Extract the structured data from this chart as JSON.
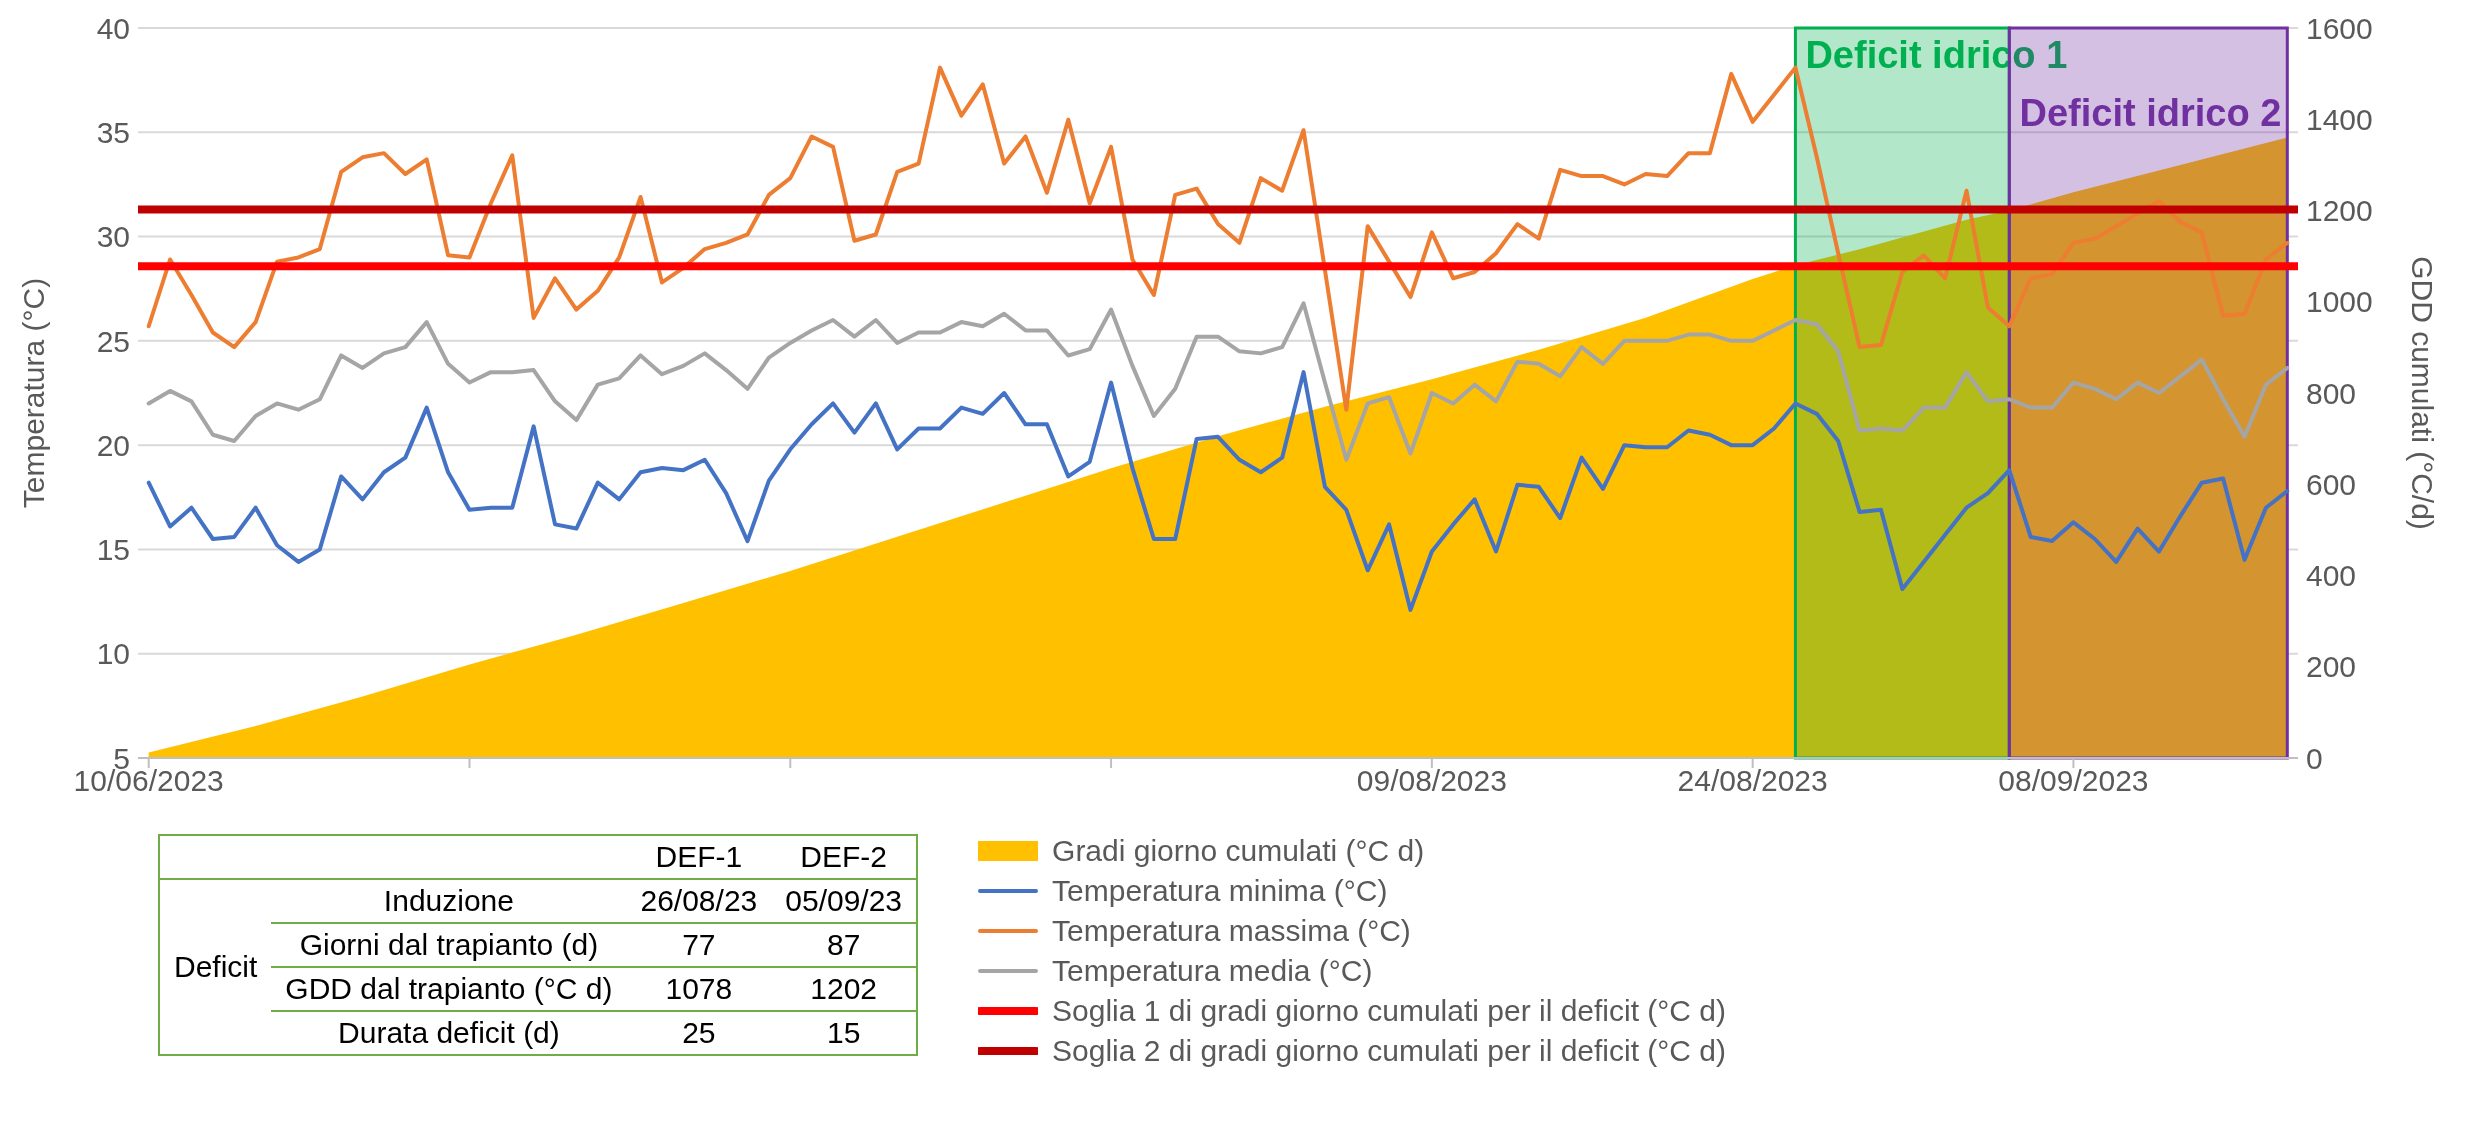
{
  "chart_data": {
    "type": "line",
    "ylabel": "Temperatura (°C)",
    "y2label": "GDD cumulati (°C/d)",
    "x": [
      "2023-06-10",
      "2023-06-11",
      "2023-06-12",
      "2023-06-13",
      "2023-06-14",
      "2023-06-15",
      "2023-06-16",
      "2023-06-17",
      "2023-06-18",
      "2023-06-19",
      "2023-06-20",
      "2023-06-21",
      "2023-06-22",
      "2023-06-23",
      "2023-06-24",
      "2023-06-25",
      "2023-06-26",
      "2023-06-27",
      "2023-06-28",
      "2023-06-29",
      "2023-06-30",
      "2023-07-01",
      "2023-07-02",
      "2023-07-03",
      "2023-07-04",
      "2023-07-05",
      "2023-07-06",
      "2023-07-07",
      "2023-07-08",
      "2023-07-09",
      "2023-07-10",
      "2023-07-11",
      "2023-07-12",
      "2023-07-13",
      "2023-07-14",
      "2023-07-15",
      "2023-07-16",
      "2023-07-17",
      "2023-07-18",
      "2023-07-19",
      "2023-07-20",
      "2023-07-21",
      "2023-07-22",
      "2023-07-23",
      "2023-07-24",
      "2023-07-25",
      "2023-07-26",
      "2023-07-27",
      "2023-07-28",
      "2023-07-29",
      "2023-07-30",
      "2023-07-31",
      "2023-08-01",
      "2023-08-02",
      "2023-08-03",
      "2023-08-04",
      "2023-08-05",
      "2023-08-06",
      "2023-08-07",
      "2023-08-08",
      "2023-08-09",
      "2023-08-10",
      "2023-08-11",
      "2023-08-12",
      "2023-08-13",
      "2023-08-14",
      "2023-08-15",
      "2023-08-16",
      "2023-08-17",
      "2023-08-18",
      "2023-08-19",
      "2023-08-20",
      "2023-08-21",
      "2023-08-22",
      "2023-08-23",
      "2023-08-24",
      "2023-08-25",
      "2023-08-26",
      "2023-08-27",
      "2023-08-28",
      "2023-08-29",
      "2023-08-30",
      "2023-08-31",
      "2023-09-01",
      "2023-09-02",
      "2023-09-03",
      "2023-09-04",
      "2023-09-05",
      "2023-09-06",
      "2023-09-07",
      "2023-09-08",
      "2023-09-09",
      "2023-09-10",
      "2023-09-11",
      "2023-09-12",
      "2023-09-13",
      "2023-09-14",
      "2023-09-15",
      "2023-09-16",
      "2023-09-17",
      "2023-09-18"
    ],
    "series": [
      {
        "name": "Gradi giorno cumulati (°C d)",
        "type": "area",
        "axis": "y2",
        "color": "#ffc000",
        "x": [
          "2023-06-10",
          "2023-06-15",
          "2023-06-20",
          "2023-06-25",
          "2023-06-30",
          "2023-07-05",
          "2023-07-10",
          "2023-07-15",
          "2023-07-20",
          "2023-07-25",
          "2023-07-30",
          "2023-08-04",
          "2023-08-09",
          "2023-08-14",
          "2023-08-19",
          "2023-08-24",
          "2023-08-26",
          "2023-08-29",
          "2023-09-03",
          "2023-09-05",
          "2023-09-08",
          "2023-09-13",
          "2023-09-18"
        ],
        "values": [
          12,
          70,
          135,
          205,
          270,
          340,
          410,
          485,
          560,
          635,
          705,
          770,
          830,
          895,
          965,
          1050,
          1080,
          1115,
          1180,
          1200,
          1240,
          1300,
          1360
        ]
      },
      {
        "name": "Temperatura minima (°C)",
        "color": "#4472c4",
        "values": [
          18.2,
          16.1,
          17.0,
          15.5,
          15.6,
          17.0,
          15.2,
          14.4,
          15.0,
          18.5,
          17.4,
          18.7,
          19.4,
          21.8,
          18.7,
          16.9,
          17.0,
          17.0,
          20.9,
          16.2,
          16.0,
          18.2,
          17.4,
          18.7,
          18.9,
          18.8,
          19.3,
          17.7,
          15.4,
          18.3,
          19.8,
          21.0,
          22.0,
          20.6,
          22.0,
          19.8,
          20.8,
          20.8,
          21.8,
          21.5,
          22.5,
          21.0,
          21.0,
          18.5,
          19.2,
          23.0,
          18.9,
          15.5,
          15.5,
          20.3,
          20.4,
          19.3,
          18.7,
          19.4,
          23.5,
          18.0,
          16.9,
          14.0,
          16.2,
          12.1,
          14.9,
          16.2,
          17.4,
          14.9,
          18.1,
          18.0,
          16.5,
          19.4,
          17.9,
          20.0,
          19.9,
          19.9,
          20.7,
          20.5,
          20.0,
          20.0,
          20.8,
          22.0,
          21.5,
          20.2,
          16.8,
          16.9,
          13.1,
          14.4,
          15.7,
          17.0,
          17.7,
          18.8,
          15.6,
          15.4,
          16.3,
          15.5,
          14.4,
          16.0,
          14.9,
          16.6,
          18.2,
          18.4,
          14.5,
          17.0,
          17.8
        ]
      },
      {
        "name": "Temperatura massima (°C)",
        "color": "#ed7d31",
        "values": [
          25.7,
          28.9,
          27.2,
          25.4,
          24.7,
          25.9,
          28.8,
          29.0,
          29.4,
          33.1,
          33.8,
          34.0,
          33.0,
          33.7,
          29.1,
          29.0,
          31.6,
          33.9,
          26.1,
          28.0,
          26.5,
          27.4,
          29.0,
          31.9,
          27.8,
          28.5,
          29.4,
          29.7,
          30.1,
          32.0,
          32.8,
          34.8,
          34.3,
          29.8,
          30.1,
          33.1,
          33.5,
          38.1,
          35.8,
          37.3,
          33.5,
          34.8,
          32.1,
          35.6,
          31.6,
          34.3,
          28.9,
          27.2,
          32.0,
          32.3,
          30.6,
          29.7,
          32.8,
          32.2,
          35.1,
          28.4,
          21.7,
          30.5,
          28.8,
          27.1,
          30.2,
          28.0,
          28.3,
          29.2,
          30.6,
          29.9,
          33.2,
          32.9,
          32.9,
          32.5,
          33.0,
          32.9,
          34.0,
          34.0,
          37.8,
          35.5,
          36.8,
          38.1,
          33.8,
          29.2,
          24.7,
          24.8,
          28.3,
          29.1,
          28.0,
          32.2,
          26.6,
          25.7,
          28.0,
          28.2,
          29.7,
          29.9,
          30.5,
          31.1,
          31.7,
          30.7,
          30.2,
          26.2,
          26.3,
          28.9,
          29.7
        ]
      },
      {
        "name": "Temperatura media (°C)",
        "color": "#a5a5a5",
        "values": [
          22.0,
          22.6,
          22.1,
          20.5,
          20.2,
          21.4,
          22.0,
          21.7,
          22.2,
          24.3,
          23.7,
          24.4,
          24.7,
          25.9,
          23.9,
          23.0,
          23.5,
          23.5,
          23.6,
          22.1,
          21.2,
          22.9,
          23.2,
          24.3,
          23.4,
          23.8,
          24.4,
          23.6,
          22.7,
          24.2,
          24.9,
          25.5,
          26.0,
          25.2,
          26.0,
          24.9,
          25.4,
          25.4,
          25.9,
          25.7,
          26.3,
          25.5,
          25.5,
          24.3,
          24.6,
          26.5,
          23.8,
          21.4,
          22.7,
          25.2,
          25.2,
          24.5,
          24.4,
          24.7,
          26.8,
          23.0,
          19.3,
          22.0,
          22.3,
          19.6,
          22.5,
          22.0,
          22.9,
          22.1,
          24.0,
          23.9,
          23.3,
          24.7,
          23.9,
          25.0,
          25.0,
          25.0,
          25.3,
          25.3,
          25.0,
          25.0,
          25.5,
          26.0,
          25.8,
          24.5,
          20.7,
          20.8,
          20.7,
          21.8,
          21.8,
          23.5,
          22.1,
          22.2,
          21.8,
          21.8,
          23.0,
          22.7,
          22.2,
          23.0,
          22.5,
          23.3,
          24.1,
          22.2,
          20.4,
          22.9,
          23.7
        ]
      }
    ],
    "ref_lines": [
      {
        "axis": "y2",
        "value": 1078,
        "label": "Soglia 1 di gradi giorno cumulati per il deficit (°C d)",
        "color": "#ff0000"
      },
      {
        "axis": "y2",
        "value": 1202,
        "label": "Soglia 2 di gradi giorno cumulati per il deficit (°C d)",
        "color": "#c00000"
      }
    ],
    "bands": [
      {
        "axis": "x",
        "from": "2023-08-26",
        "to": "2023-09-05",
        "label": "Deficit idrico 1",
        "color": "#00b050"
      },
      {
        "axis": "x",
        "from": "2023-09-05",
        "to": "2023-09-18",
        "label": "Deficit idrico 2",
        "color": "#7030a0"
      }
    ],
    "annotations": [
      "DEF-1",
      "DEF-2",
      "Deficit",
      "Induzione",
      "26/08/23",
      "05/09/23",
      "Giorni dal trapianto (d)",
      "77",
      "87",
      "GDD dal trapianto (°C d)",
      "1078",
      "1202",
      "Durata deficit (d)",
      "25",
      "15"
    ],
    "xlim": [
      "2023-06-09T12:00",
      "2023-09-18T12:00"
    ],
    "xticks": [
      {
        "value": "2023-06-10",
        "label": "10/06/2023"
      },
      {
        "value": "2023-06-25",
        "label": null
      },
      {
        "value": "2023-07-10",
        "label": null
      },
      {
        "value": "2023-07-25",
        "label": null
      },
      {
        "value": "2023-08-09",
        "label": "09/08/2023"
      },
      {
        "value": "2023-08-24",
        "label": "24/08/2023"
      },
      {
        "value": "2023-09-08",
        "label": "08/09/2023"
      }
    ],
    "ylim": [
      5,
      40
    ],
    "yticks": [
      5,
      10,
      15,
      20,
      25,
      30,
      35,
      40
    ],
    "y2lim": [
      0,
      1600
    ],
    "y2ticks": [
      0,
      200,
      400,
      600,
      800,
      1000,
      1200,
      1400,
      1600
    ],
    "grid": "y",
    "legend": "bottom",
    "marker": "none",
    "line_style": "solid"
  }
}
